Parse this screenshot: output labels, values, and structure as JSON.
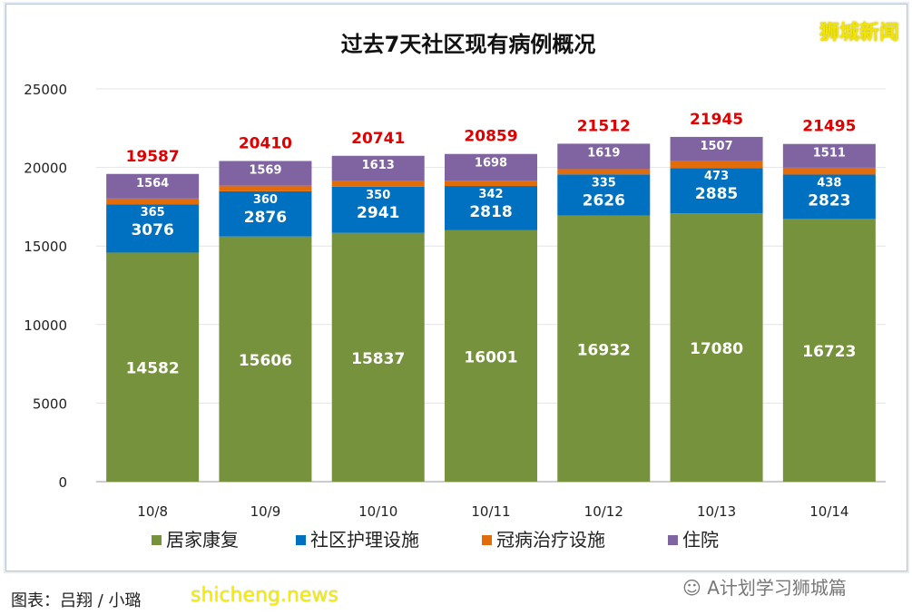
{
  "watermark": "狮城新闻",
  "caption": "图表：吕翔 / 小璐",
  "caption_logo": "shicheng.news",
  "wechat_tag": "A计划学习狮城篇",
  "chart_data": {
    "type": "bar",
    "stacked": true,
    "title": "过去7天社区现有病例概况",
    "categories": [
      "10/8",
      "10/9",
      "10/10",
      "10/11",
      "10/12",
      "10/13",
      "10/14"
    ],
    "series": [
      {
        "name": "居家康复",
        "color": "#76923c",
        "values": [
          14582,
          15606,
          15837,
          16001,
          16932,
          17080,
          16723
        ]
      },
      {
        "name": "社区护理设施",
        "color": "#0070c0",
        "values": [
          3076,
          2876,
          2941,
          2818,
          2626,
          2885,
          2823
        ]
      },
      {
        "name": "冠病治疗设施",
        "color": "#e36c0a",
        "values": [
          365,
          360,
          350,
          342,
          335,
          473,
          438
        ]
      },
      {
        "name": "住院",
        "color": "#8064a2",
        "values": [
          1564,
          1569,
          1613,
          1698,
          1619,
          1507,
          1511
        ]
      }
    ],
    "totals": [
      19587,
      20410,
      20741,
      20859,
      21512,
      21945,
      21495
    ],
    "total_label_color": "#e00000",
    "ylim": [
      0,
      25000
    ],
    "yticks": [
      0,
      5000,
      10000,
      15000,
      20000,
      25000
    ],
    "grid": true,
    "legend": "bottom"
  }
}
